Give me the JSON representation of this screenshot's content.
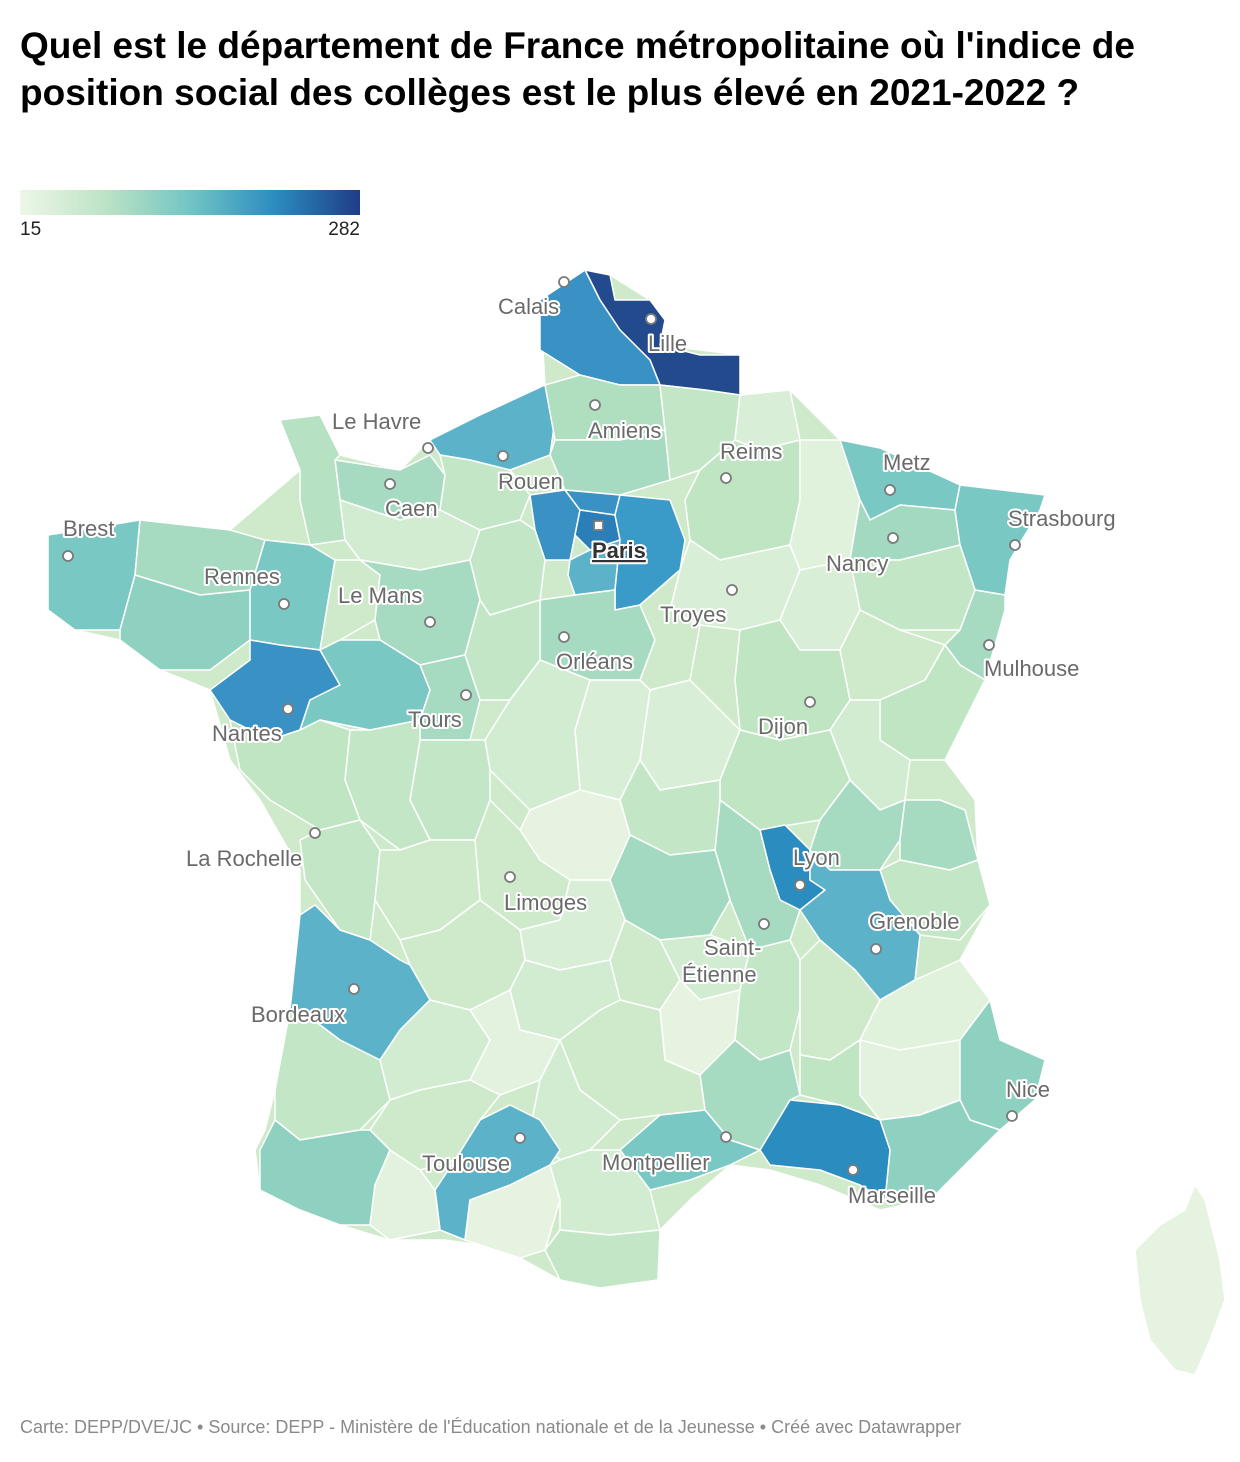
{
  "title": "Quel est le département de France métropolitaine où l'indice de position social des collèges est le plus élevé en 2021-2022 ?",
  "legend": {
    "min": "15",
    "max": "282"
  },
  "cities": [
    {
      "name": "Calais"
    },
    {
      "name": "Lille"
    },
    {
      "name": "Le Havre"
    },
    {
      "name": "Amiens"
    },
    {
      "name": "Reims"
    },
    {
      "name": "Metz"
    },
    {
      "name": "Rouen"
    },
    {
      "name": "Caen"
    },
    {
      "name": "Brest"
    },
    {
      "name": "Paris"
    },
    {
      "name": "Strasbourg"
    },
    {
      "name": "Nancy"
    },
    {
      "name": "Rennes"
    },
    {
      "name": "Le Mans"
    },
    {
      "name": "Troyes"
    },
    {
      "name": "Orléans"
    },
    {
      "name": "Mulhouse"
    },
    {
      "name": "Tours"
    },
    {
      "name": "Dijon"
    },
    {
      "name": "Nantes"
    },
    {
      "name": "La Rochelle"
    },
    {
      "name": "Lyon"
    },
    {
      "name": "Limoges"
    },
    {
      "name": "Grenoble"
    },
    {
      "name": "Saint-Étienne"
    },
    {
      "name": "Bordeaux"
    },
    {
      "name": "Nice"
    },
    {
      "name": "Toulouse"
    },
    {
      "name": "Montpellier"
    },
    {
      "name": "Marseille"
    }
  ],
  "footer": "Carte: DEPP/DVE/JC • Source: DEPP - Ministère de l'Éducation nationale et de la Jeunesse • Créé avec Datawrapper",
  "colors": {
    "darkest": "#234a8c",
    "dark": "#3a91c4",
    "medium": "#5cb2c9",
    "teal": "#79c8c3",
    "light_teal": "#9fd8bf",
    "light_green": "#c3e6c6",
    "pale": "#e3f2df",
    "palest": "#eef7e8"
  }
}
